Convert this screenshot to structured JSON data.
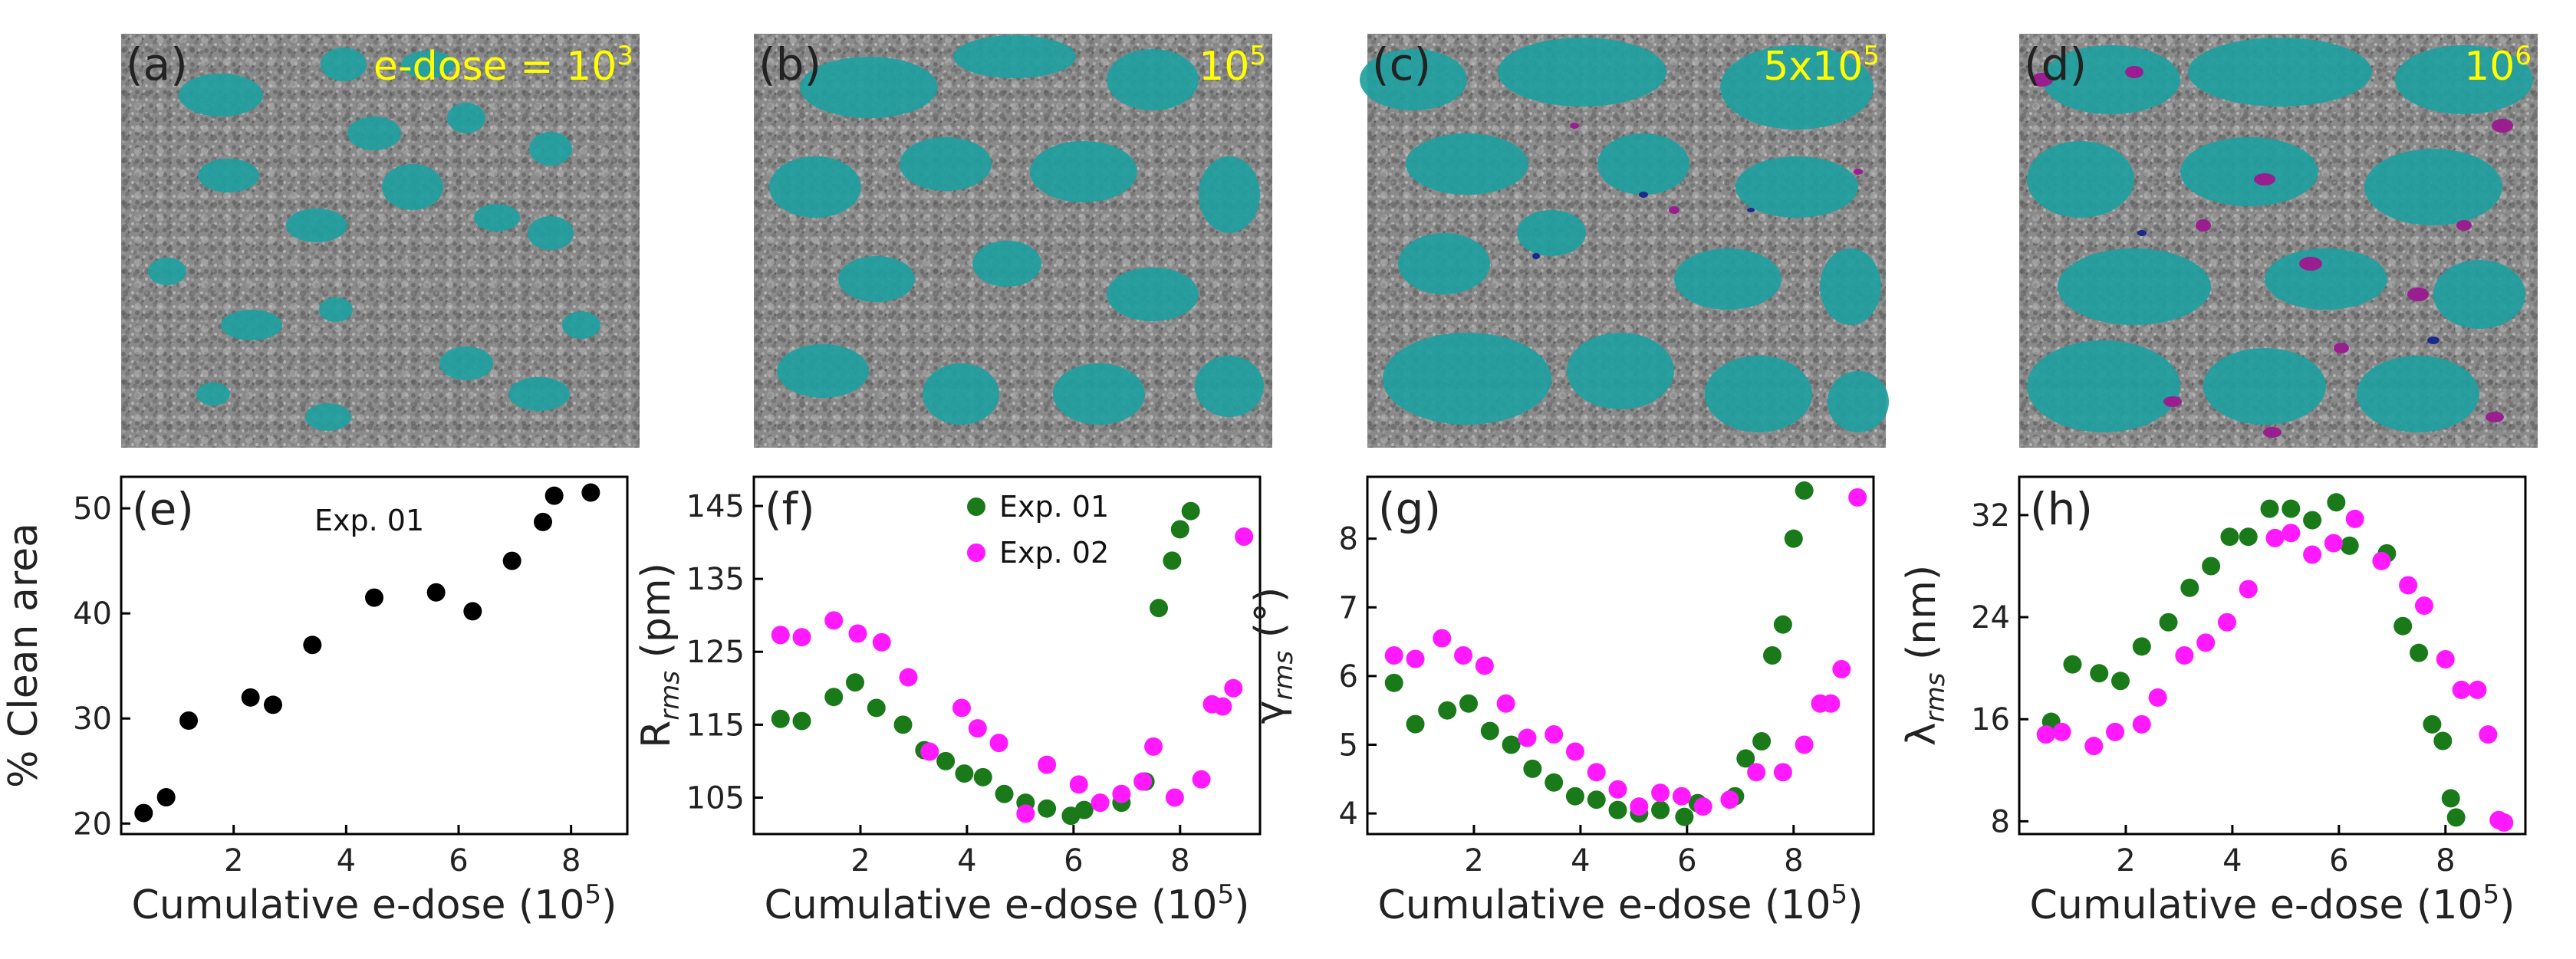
{
  "figure": {
    "colors": {
      "clean": "#1f9fa0",
      "contam": "#9a1e8f",
      "hole": "#1a2a8a",
      "label_yellow": "#ffff00",
      "exp01": "#1a7a1a",
      "exp02": "#ff19ff",
      "black": "#000000",
      "micro_base": "#8a8a8a"
    },
    "micrographs": [
      {
        "panel": "(a)",
        "dose_label": "e-dose = 10",
        "dose_sup": "3",
        "dose_sup_tail": ""
      },
      {
        "panel": "(b)",
        "dose_label": "10",
        "dose_sup": "5",
        "dose_sup_tail": ""
      },
      {
        "panel": "(c)",
        "dose_label": "5x10",
        "dose_sup": "5",
        "dose_sup_tail": ""
      },
      {
        "panel": "(d)",
        "dose_label": "10",
        "dose_sup": "6",
        "dose_sup_tail": ""
      }
    ]
  },
  "chart_data": [
    {
      "type": "scatter",
      "panel": "(e)",
      "annotation": "Exp. 01",
      "ylabel": "% Clean area",
      "xlabel": "Cumulative e-dose (10",
      "xlabel_sup": "5",
      "xlabel_tail": ")",
      "xlim": [
        0,
        9
      ],
      "ylim": [
        19,
        53
      ],
      "xticks": [
        2,
        4,
        6,
        8
      ],
      "yticks": [
        20,
        30,
        40,
        50
      ],
      "series": [
        {
          "name": "Exp. 01",
          "color": "#000000",
          "x": [
            0.4,
            0.8,
            1.2,
            2.3,
            2.7,
            3.4,
            4.5,
            5.6,
            6.25,
            6.95,
            7.5,
            7.7,
            8.35
          ],
          "y": [
            21.0,
            22.5,
            29.8,
            32.0,
            31.3,
            37.0,
            41.5,
            42.0,
            40.2,
            45.0,
            48.7,
            51.2,
            51.5
          ]
        }
      ]
    },
    {
      "type": "scatter",
      "panel": "(f)",
      "ylabel": "R",
      "ylabel_sub": "rms",
      "ylabel_tail": " (pm)",
      "xlabel": "Cumulative e-dose (10",
      "xlabel_sup": "5",
      "xlabel_tail": ")",
      "xlim": [
        0,
        9.5
      ],
      "ylim": [
        100,
        149
      ],
      "xticks": [
        2,
        4,
        6,
        8
      ],
      "yticks": [
        105,
        115,
        125,
        135,
        145
      ],
      "legend": [
        "Exp. 01",
        "Exp. 02"
      ],
      "series": [
        {
          "name": "Exp. 01",
          "color": "#1a7a1a",
          "x": [
            0.5,
            0.9,
            1.5,
            1.9,
            2.3,
            2.8,
            3.2,
            3.6,
            3.95,
            4.3,
            4.7,
            5.1,
            5.5,
            5.95,
            6.2,
            6.9,
            7.35,
            7.6,
            7.85,
            8.0,
            8.2
          ],
          "y": [
            115.8,
            115.5,
            118.8,
            120.8,
            117.3,
            115.0,
            111.5,
            110.0,
            108.3,
            107.8,
            105.5,
            104.3,
            103.5,
            102.5,
            103.3,
            104.3,
            107.2,
            131.0,
            137.5,
            141.8,
            144.3
          ]
        },
        {
          "name": "Exp. 02",
          "color": "#ff19ff",
          "x": [
            0.5,
            0.9,
            1.5,
            1.95,
            2.4,
            2.9,
            3.3,
            3.9,
            4.2,
            4.6,
            5.1,
            5.5,
            6.1,
            6.5,
            6.9,
            7.3,
            7.5,
            7.9,
            8.4,
            8.6,
            8.8,
            9.0,
            9.2
          ],
          "y": [
            127.3,
            127.0,
            129.3,
            127.5,
            126.3,
            121.5,
            111.3,
            117.3,
            114.5,
            112.5,
            102.8,
            109.5,
            106.8,
            104.3,
            105.5,
            107.2,
            112.0,
            105.0,
            107.5,
            117.8,
            117.5,
            120.0,
            140.8
          ]
        }
      ]
    },
    {
      "type": "scatter",
      "panel": "(g)",
      "ylabel": "γ",
      "ylabel_sub": "rms",
      "ylabel_tail": " (°)",
      "xlabel": "Cumulative e-dose (10",
      "xlabel_sup": "5",
      "xlabel_tail": ")",
      "xlim": [
        0,
        9.5
      ],
      "ylim": [
        3.7,
        8.9
      ],
      "xticks": [
        2,
        4,
        6,
        8
      ],
      "yticks": [
        4,
        5,
        6,
        7,
        8
      ],
      "series": [
        {
          "name": "Exp. 01",
          "color": "#1a7a1a",
          "x": [
            0.5,
            0.9,
            1.5,
            1.9,
            2.3,
            2.7,
            3.1,
            3.5,
            3.9,
            4.3,
            4.7,
            5.1,
            5.5,
            5.95,
            6.2,
            6.9,
            7.1,
            7.4,
            7.6,
            7.8,
            8.0,
            8.2
          ],
          "y": [
            5.9,
            5.3,
            5.5,
            5.6,
            5.2,
            5.0,
            4.65,
            4.45,
            4.25,
            4.2,
            4.05,
            4.0,
            4.05,
            3.95,
            4.15,
            4.25,
            4.8,
            5.05,
            6.3,
            6.75,
            8.0,
            8.7
          ]
        },
        {
          "name": "Exp. 02",
          "color": "#ff19ff",
          "x": [
            0.5,
            0.9,
            1.4,
            1.8,
            2.2,
            2.6,
            3.0,
            3.5,
            3.9,
            4.3,
            4.7,
            5.1,
            5.5,
            5.9,
            6.3,
            6.8,
            7.3,
            7.8,
            8.2,
            8.5,
            8.7,
            8.9,
            9.2
          ],
          "y": [
            6.3,
            6.25,
            6.55,
            6.3,
            6.15,
            5.6,
            5.1,
            5.15,
            4.9,
            4.6,
            4.35,
            4.1,
            4.3,
            4.25,
            4.1,
            4.2,
            4.6,
            4.6,
            5.0,
            5.6,
            5.6,
            6.1,
            8.6
          ]
        }
      ]
    },
    {
      "type": "scatter",
      "panel": "(h)",
      "ylabel": "λ",
      "ylabel_sub": "rms",
      "ylabel_tail": " (nm)",
      "xlabel": "Cumulative e-dose (10",
      "xlabel_sup": "5",
      "xlabel_tail": ")",
      "xlim": [
        0,
        9.5
      ],
      "ylim": [
        7,
        35
      ],
      "xticks": [
        2,
        4,
        6,
        8
      ],
      "yticks": [
        8,
        16,
        24,
        32
      ],
      "series": [
        {
          "name": "Exp. 01",
          "color": "#1a7a1a",
          "x": [
            0.6,
            1.0,
            1.5,
            1.9,
            2.3,
            2.8,
            3.2,
            3.6,
            3.95,
            4.3,
            4.7,
            5.1,
            5.5,
            5.95,
            6.2,
            6.9,
            7.2,
            7.5,
            7.75,
            7.95,
            8.1,
            8.2
          ],
          "y": [
            15.8,
            20.3,
            19.6,
            19.0,
            21.7,
            23.6,
            26.3,
            28.0,
            30.3,
            30.3,
            32.5,
            32.5,
            31.6,
            33.0,
            29.6,
            29.0,
            23.3,
            21.2,
            15.6,
            14.3,
            9.8,
            8.3
          ]
        },
        {
          "name": "Exp. 02",
          "color": "#ff19ff",
          "x": [
            0.5,
            0.8,
            1.4,
            1.8,
            2.3,
            2.6,
            3.1,
            3.5,
            3.9,
            4.3,
            4.8,
            5.1,
            5.5,
            5.9,
            6.3,
            6.8,
            7.3,
            7.6,
            8.0,
            8.3,
            8.6,
            8.8,
            9.0,
            9.1
          ],
          "y": [
            14.8,
            15.0,
            13.9,
            15.0,
            15.6,
            17.7,
            21.0,
            22.0,
            23.6,
            26.2,
            30.2,
            30.6,
            28.9,
            29.8,
            31.7,
            28.4,
            26.5,
            24.9,
            20.7,
            18.3,
            18.3,
            14.8,
            8.1,
            7.9
          ]
        }
      ]
    }
  ]
}
